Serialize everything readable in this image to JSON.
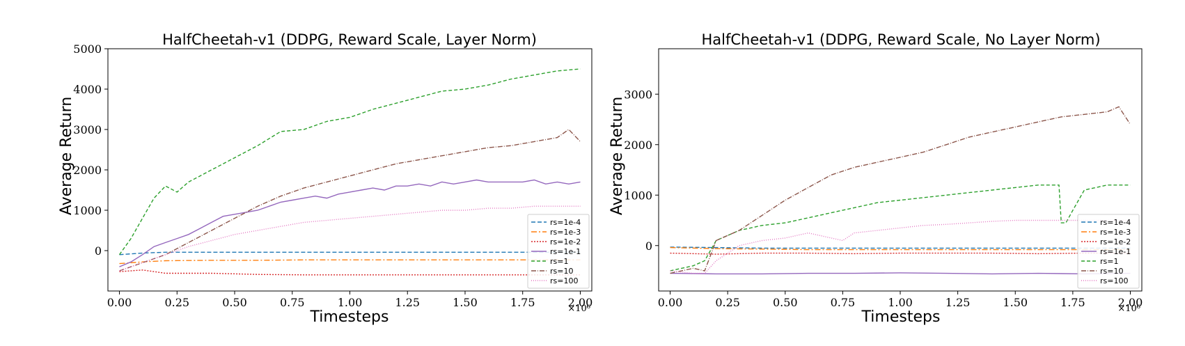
{
  "chart_data": [
    {
      "type": "line",
      "title": "HalfCheetah-v1 (DDPG, Reward Scale, Layer Norm)",
      "xlabel": "Timesteps",
      "ylabel": "Average Return",
      "x_multiplier": "×10⁶",
      "xlim": [
        -0.05,
        2.05
      ],
      "ylim": [
        -1000,
        5000
      ],
      "xticks": [
        "0.00",
        "0.25",
        "0.50",
        "0.75",
        "1.00",
        "1.25",
        "1.50",
        "1.75",
        "2.00"
      ],
      "yticks": [
        "0",
        "1000",
        "2000",
        "3000",
        "4000",
        "5000"
      ],
      "legend_position": "lower-right",
      "grid": false,
      "series": [
        {
          "name": "rs=1e-4",
          "color": "#1f77b4",
          "dash": "6,3",
          "x": [
            0.0,
            0.1,
            0.2,
            0.4,
            0.6,
            0.8,
            1.0,
            1.2,
            1.4,
            1.6,
            1.8,
            2.0
          ],
          "y": [
            -100,
            -60,
            -40,
            -40,
            -40,
            -40,
            -40,
            -40,
            -40,
            -40,
            -40,
            -40
          ]
        },
        {
          "name": "rs=1e-3",
          "color": "#ff7f0e",
          "dash": "8,3,2,3",
          "x": [
            0.0,
            0.1,
            0.2,
            0.4,
            0.6,
            0.8,
            1.0,
            1.2,
            1.4,
            1.6,
            1.8,
            2.0
          ],
          "y": [
            -320,
            -280,
            -250,
            -240,
            -240,
            -230,
            -230,
            -230,
            -230,
            -230,
            -230,
            -230
          ]
        },
        {
          "name": "rs=1e-2",
          "color": "#d62728",
          "dash": "2,2",
          "x": [
            0.0,
            0.1,
            0.2,
            0.4,
            0.6,
            0.8,
            1.0,
            1.2,
            1.4,
            1.6,
            1.8,
            2.0
          ],
          "y": [
            -520,
            -480,
            -560,
            -560,
            -590,
            -600,
            -600,
            -600,
            -600,
            -600,
            -600,
            -600
          ]
        },
        {
          "name": "rs=1e-1",
          "color": "#9467bd",
          "dash": "",
          "x": [
            0.0,
            0.05,
            0.1,
            0.15,
            0.2,
            0.25,
            0.3,
            0.35,
            0.4,
            0.45,
            0.5,
            0.55,
            0.6,
            0.65,
            0.7,
            0.75,
            0.8,
            0.85,
            0.9,
            0.95,
            1.0,
            1.05,
            1.1,
            1.15,
            1.2,
            1.25,
            1.3,
            1.35,
            1.4,
            1.45,
            1.5,
            1.55,
            1.6,
            1.65,
            1.7,
            1.75,
            1.8,
            1.85,
            1.9,
            1.95,
            2.0
          ],
          "y": [
            -400,
            -280,
            -100,
            100,
            200,
            300,
            400,
            550,
            700,
            850,
            900,
            950,
            1000,
            1100,
            1200,
            1250,
            1300,
            1350,
            1300,
            1400,
            1450,
            1500,
            1550,
            1500,
            1600,
            1600,
            1650,
            1600,
            1700,
            1650,
            1700,
            1750,
            1700,
            1700,
            1700,
            1700,
            1750,
            1650,
            1700,
            1650,
            1700
          ]
        },
        {
          "name": "rs=1",
          "color": "#2ca02c",
          "dash": "5,3",
          "x": [
            0.0,
            0.05,
            0.1,
            0.15,
            0.2,
            0.25,
            0.3,
            0.35,
            0.4,
            0.5,
            0.6,
            0.7,
            0.8,
            0.9,
            1.0,
            1.1,
            1.2,
            1.3,
            1.4,
            1.5,
            1.6,
            1.7,
            1.8,
            1.9,
            2.0
          ],
          "y": [
            -100,
            300,
            800,
            1300,
            1600,
            1450,
            1700,
            1850,
            2000,
            2300,
            2600,
            2950,
            3000,
            3200,
            3300,
            3500,
            3650,
            3800,
            3950,
            4000,
            4100,
            4250,
            4350,
            4450,
            4500
          ]
        },
        {
          "name": "rs=10",
          "color": "#8c564b",
          "dash": "7,2,1,2",
          "x": [
            0.0,
            0.1,
            0.2,
            0.3,
            0.4,
            0.5,
            0.6,
            0.7,
            0.8,
            0.9,
            1.0,
            1.1,
            1.2,
            1.3,
            1.4,
            1.5,
            1.6,
            1.7,
            1.8,
            1.9,
            1.95,
            2.0
          ],
          "y": [
            -500,
            -300,
            -100,
            200,
            500,
            800,
            1100,
            1350,
            1550,
            1700,
            1850,
            2000,
            2150,
            2250,
            2350,
            2450,
            2550,
            2600,
            2700,
            2800,
            3000,
            2700
          ]
        },
        {
          "name": "rs=100",
          "color": "#e377c2",
          "dash": "1,2",
          "x": [
            0.0,
            0.1,
            0.2,
            0.3,
            0.4,
            0.5,
            0.6,
            0.7,
            0.8,
            0.9,
            1.0,
            1.1,
            1.2,
            1.3,
            1.4,
            1.5,
            1.6,
            1.7,
            1.8,
            1.9,
            2.0
          ],
          "y": [
            -500,
            -300,
            -100,
            100,
            250,
            400,
            500,
            600,
            700,
            750,
            800,
            850,
            900,
            950,
            1000,
            1000,
            1050,
            1050,
            1100,
            1100,
            1100
          ]
        }
      ]
    },
    {
      "type": "line",
      "title": "HalfCheetah-v1 (DDPG, Reward Scale, No Layer Norm)",
      "xlabel": "Timesteps",
      "ylabel": "Average Return",
      "x_multiplier": "×10⁶",
      "xlim": [
        -0.05,
        2.05
      ],
      "ylim": [
        -900,
        3900
      ],
      "xticks": [
        "0.00",
        "0.25",
        "0.50",
        "0.75",
        "1.00",
        "1.25",
        "1.50",
        "1.75",
        "2.00"
      ],
      "yticks": [
        "0",
        "1000",
        "2000",
        "3000"
      ],
      "legend_position": "lower-right",
      "grid": false,
      "series": [
        {
          "name": "rs=1e-4",
          "color": "#1f77b4",
          "dash": "6,3",
          "x": [
            0.0,
            0.2,
            0.4,
            0.6,
            0.8,
            1.0,
            1.2,
            1.4,
            1.6,
            1.8,
            2.0
          ],
          "y": [
            -30,
            -40,
            -50,
            -50,
            -50,
            -50,
            -50,
            -50,
            -50,
            -50,
            -50
          ]
        },
        {
          "name": "rs=1e-3",
          "color": "#ff7f0e",
          "dash": "8,3,2,3",
          "x": [
            0.0,
            0.2,
            0.4,
            0.6,
            0.8,
            1.0,
            1.2,
            1.4,
            1.6,
            1.8,
            2.0
          ],
          "y": [
            -40,
            -60,
            -70,
            -80,
            -80,
            -80,
            -80,
            -80,
            -80,
            -80,
            -80
          ]
        },
        {
          "name": "rs=1e-2",
          "color": "#d62728",
          "dash": "2,2",
          "x": [
            0.0,
            0.2,
            0.4,
            0.6,
            0.8,
            1.0,
            1.2,
            1.4,
            1.6,
            1.8,
            2.0
          ],
          "y": [
            -150,
            -170,
            -150,
            -150,
            -160,
            -150,
            -150,
            -150,
            -160,
            -150,
            -150
          ]
        },
        {
          "name": "rs=1e-1",
          "color": "#9467bd",
          "dash": "",
          "x": [
            0.0,
            0.2,
            0.4,
            0.6,
            0.8,
            1.0,
            1.2,
            1.4,
            1.6,
            1.8,
            2.0
          ],
          "y": [
            -550,
            -560,
            -560,
            -550,
            -550,
            -540,
            -550,
            -560,
            -550,
            -560,
            -550
          ]
        },
        {
          "name": "rs=1",
          "color": "#2ca02c",
          "dash": "5,3",
          "x": [
            0.0,
            0.1,
            0.15,
            0.2,
            0.3,
            0.4,
            0.5,
            0.6,
            0.7,
            0.8,
            0.9,
            1.0,
            1.1,
            1.2,
            1.3,
            1.4,
            1.5,
            1.6,
            1.65,
            1.69,
            1.7,
            1.72,
            1.75,
            1.8,
            1.9,
            2.0
          ],
          "y": [
            -500,
            -400,
            -300,
            100,
            300,
            400,
            450,
            550,
            650,
            750,
            850,
            900,
            950,
            1000,
            1050,
            1100,
            1150,
            1200,
            1200,
            1200,
            450,
            450,
            700,
            1100,
            1200,
            1200
          ]
        },
        {
          "name": "rs=10",
          "color": "#8c564b",
          "dash": "7,2,1,2",
          "x": [
            0.0,
            0.1,
            0.15,
            0.2,
            0.3,
            0.4,
            0.5,
            0.6,
            0.7,
            0.8,
            0.9,
            1.0,
            1.1,
            1.2,
            1.3,
            1.4,
            1.5,
            1.6,
            1.7,
            1.8,
            1.9,
            1.95,
            2.0
          ],
          "y": [
            -550,
            -450,
            -500,
            100,
            300,
            600,
            900,
            1150,
            1400,
            1550,
            1650,
            1750,
            1850,
            2000,
            2150,
            2250,
            2350,
            2450,
            2550,
            2600,
            2650,
            2750,
            2400
          ]
        },
        {
          "name": "rs=100",
          "color": "#e377c2",
          "dash": "1,2",
          "x": [
            0.0,
            0.1,
            0.15,
            0.2,
            0.3,
            0.4,
            0.5,
            0.6,
            0.7,
            0.75,
            0.8,
            0.9,
            1.0,
            1.1,
            1.2,
            1.3,
            1.4,
            1.5,
            1.6,
            1.7,
            1.8,
            1.9,
            2.0
          ],
          "y": [
            -500,
            -550,
            -550,
            -300,
            0,
            100,
            150,
            250,
            150,
            100,
            250,
            300,
            350,
            400,
            420,
            450,
            480,
            500,
            500,
            500,
            500,
            500,
            500
          ]
        }
      ]
    }
  ]
}
